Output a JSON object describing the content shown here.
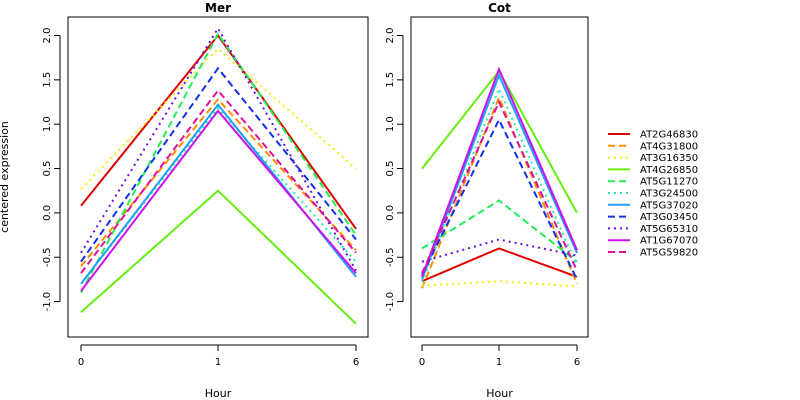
{
  "chart_data": {
    "type": "line",
    "ylabel": "centered expression",
    "xlabel": "Hour",
    "categories": [
      "0",
      "1",
      "6"
    ],
    "ylim": [
      -1.4,
      2.2
    ],
    "yticks": [
      "-1.0",
      "-0.5",
      "0.0",
      "0.5",
      "1.0",
      "1.5",
      "2.0"
    ],
    "ytick_values": [
      -1.0,
      -0.5,
      0.0,
      0.5,
      1.0,
      1.5,
      2.0
    ],
    "legend_position": "right",
    "series": [
      {
        "name": "AT2G46830",
        "color": "#e00000",
        "dash": "solid"
      },
      {
        "name": "AT4G31800",
        "color": "#ff8c00",
        "dash": "dashed"
      },
      {
        "name": "AT3G16350",
        "color": "#f0f000",
        "dash": "dotted"
      },
      {
        "name": "AT4G26850",
        "color": "#66ee11",
        "dash": "solid"
      },
      {
        "name": "AT5G11270",
        "color": "#22ee55",
        "dash": "dashed"
      },
      {
        "name": "AT3G24500",
        "color": "#22eeaa",
        "dash": "dotted"
      },
      {
        "name": "AT5G37020",
        "color": "#1ea0f0",
        "dash": "solid"
      },
      {
        "name": "AT3G03450",
        "color": "#1030ee",
        "dash": "dashed"
      },
      {
        "name": "AT5G65310",
        "color": "#6a10dd",
        "dash": "dotted"
      },
      {
        "name": "AT1G67070",
        "color": "#cc10ee",
        "dash": "solid"
      },
      {
        "name": "AT5G59820",
        "color": "#dd1199",
        "dash": "dashed"
      }
    ],
    "panels": [
      {
        "title": "Mer",
        "values": [
          [
            0.08,
            2.0,
            -0.18
          ],
          [
            -0.6,
            1.28,
            -0.42
          ],
          [
            0.27,
            1.85,
            0.5
          ],
          [
            -1.12,
            0.25,
            -1.25
          ],
          [
            -0.9,
            2.02,
            -0.25
          ],
          [
            -0.8,
            1.18,
            -0.55
          ],
          [
            -0.8,
            1.22,
            -0.72
          ],
          [
            -0.55,
            1.63,
            -0.3
          ],
          [
            -0.45,
            2.08,
            -0.65
          ],
          [
            -0.88,
            1.15,
            -0.68
          ],
          [
            -0.68,
            1.38,
            -0.45
          ]
        ]
      },
      {
        "title": "Cot",
        "values": [
          [
            -0.77,
            -0.4,
            -0.72
          ],
          [
            -0.85,
            1.3,
            -0.8
          ],
          [
            -0.82,
            -0.77,
            -0.83
          ],
          [
            0.5,
            1.6,
            0.0
          ],
          [
            -0.4,
            0.14,
            -0.55
          ],
          [
            -0.78,
            1.4,
            -0.6
          ],
          [
            -0.75,
            1.55,
            -0.45
          ],
          [
            -0.7,
            1.05,
            -0.75
          ],
          [
            -0.55,
            -0.3,
            -0.48
          ],
          [
            -0.72,
            1.62,
            -0.42
          ],
          [
            -0.68,
            1.25,
            -0.65
          ]
        ]
      }
    ]
  }
}
